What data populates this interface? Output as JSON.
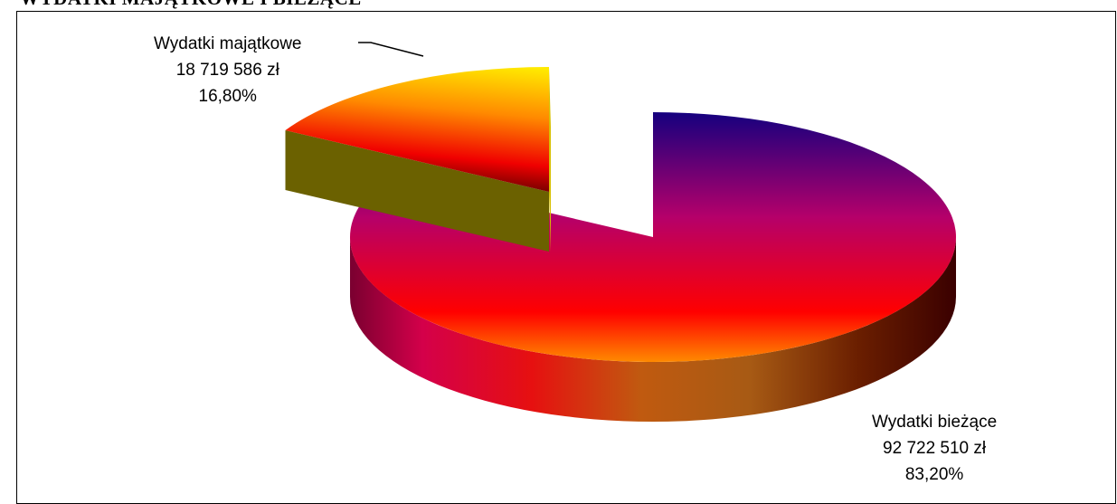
{
  "page": {
    "title": "WYDATKI MAJĄTKOWE I BIEŻĄCE"
  },
  "chart_data": {
    "type": "pie",
    "style": "3d-exploded",
    "legend": "none",
    "slices": [
      {
        "name": "Wydatki bieżące",
        "value": 92722510,
        "value_label": "92 722 510 zł",
        "percent": 83.2,
        "percent_label": "83,20%",
        "colors": {
          "top_start": "#15007f",
          "top_mid": "#b5006a",
          "top_end": "#ff0000",
          "side_light": "#e51818",
          "side_dark": "#4a0000",
          "side_gold": "#b8661a"
        }
      },
      {
        "name": "Wydatki majątkowe",
        "value": 18719586,
        "value_label": "18 719 586 zł",
        "percent": 16.8,
        "percent_label": "16,80%",
        "colors": {
          "top_start": "#ffe600",
          "top_mid": "#ff7a00",
          "top_end": "#4a0000",
          "side": "#6b6100"
        }
      }
    ]
  }
}
